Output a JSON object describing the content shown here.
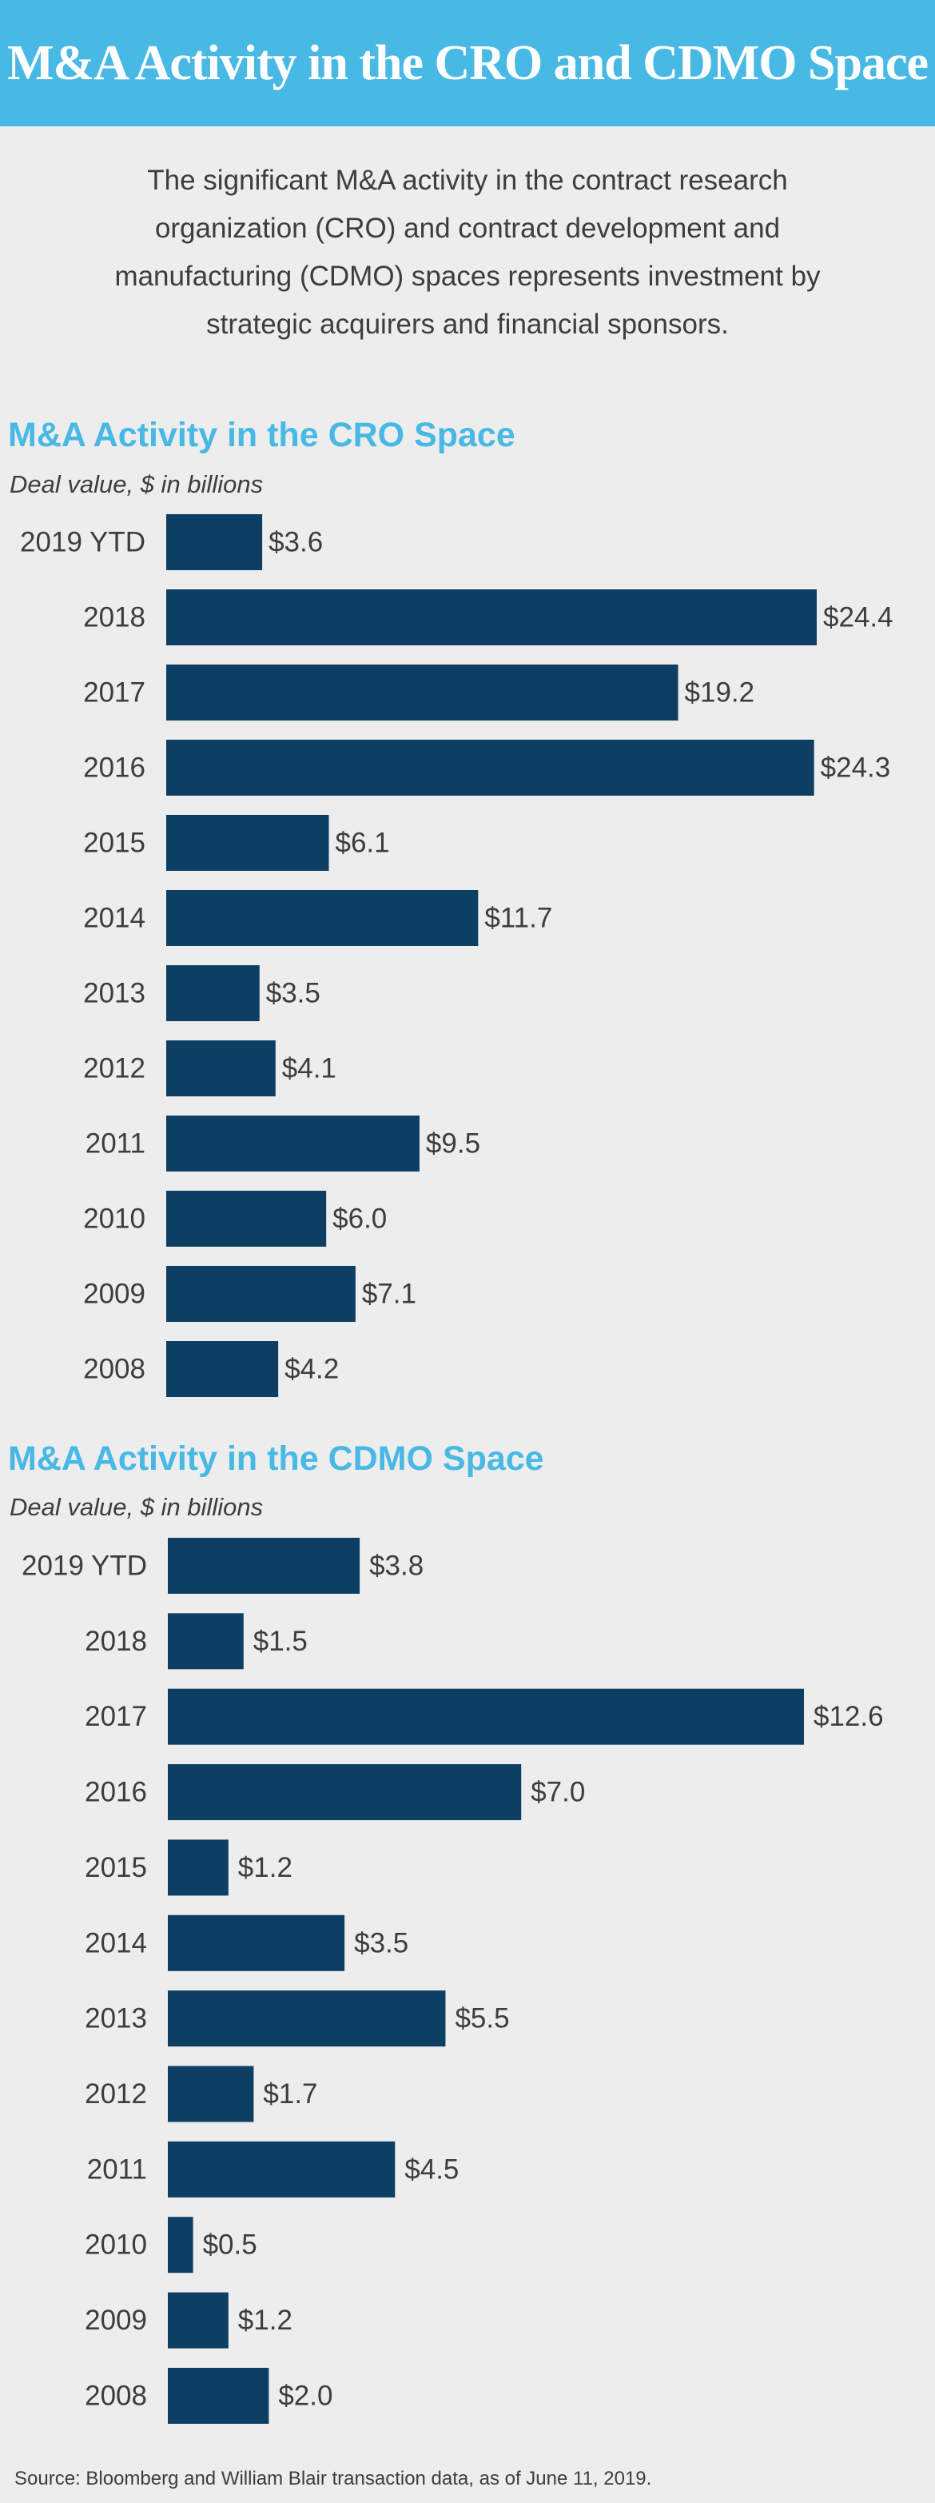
{
  "header": {
    "title": "M&A Activity in the CRO and CDMO Space"
  },
  "intro": {
    "text": "The significant M&A activity in the contract research organization (CRO) and contract development and manufacturing (CDMO) spaces represents investment by strategic acquirers and financial sponsors."
  },
  "colors": {
    "banner": "#47b9e4",
    "title_accent": "#47b9e4",
    "bar": "#0c3f63",
    "text": "#3d3d3d",
    "background": "#ededed"
  },
  "chart_data": [
    {
      "type": "bar",
      "orientation": "horizontal",
      "title": "M&A Activity in the CRO Space",
      "subtitle": "Deal value, $ in billions",
      "value_prefix": "$",
      "categories": [
        "2019 YTD",
        "2018",
        "2017",
        "2016",
        "2015",
        "2014",
        "2013",
        "2012",
        "2011",
        "2010",
        "2009",
        "2008"
      ],
      "values": [
        3.6,
        24.4,
        19.2,
        24.3,
        6.1,
        11.7,
        3.5,
        4.1,
        9.5,
        6.0,
        7.1,
        4.2
      ],
      "value_labels": [
        "$3.6",
        "$24.4",
        "$19.2",
        "$24.3",
        "$6.1",
        "$11.7",
        "$3.5",
        "$4.1",
        "$9.5",
        "$6.0",
        "$7.1",
        "$4.2"
      ],
      "xlim": [
        0,
        24.4
      ],
      "grid": false,
      "legend": "none"
    },
    {
      "type": "bar",
      "orientation": "horizontal",
      "title": "M&A Activity in the CDMO Space",
      "subtitle": "Deal value, $ in billions",
      "value_prefix": "$",
      "categories": [
        "2019 YTD",
        "2018",
        "2017",
        "2016",
        "2015",
        "2014",
        "2013",
        "2012",
        "2011",
        "2010",
        "2009",
        "2008"
      ],
      "values": [
        3.8,
        1.5,
        12.6,
        7.0,
        1.2,
        3.5,
        5.5,
        1.7,
        4.5,
        0.5,
        1.2,
        2.0
      ],
      "value_labels": [
        "$3.8",
        "$1.5",
        "$12.6",
        "$7.0",
        "$1.2",
        "$3.5",
        "$5.5",
        "$1.7",
        "$4.5",
        "$0.5",
        "$1.2",
        "$2.0"
      ],
      "xlim": [
        0,
        12.6
      ],
      "grid": false,
      "legend": "none"
    }
  ],
  "footer": {
    "source": "Source: Bloomberg and William Blair transaction data, as of June 11, 2019."
  }
}
